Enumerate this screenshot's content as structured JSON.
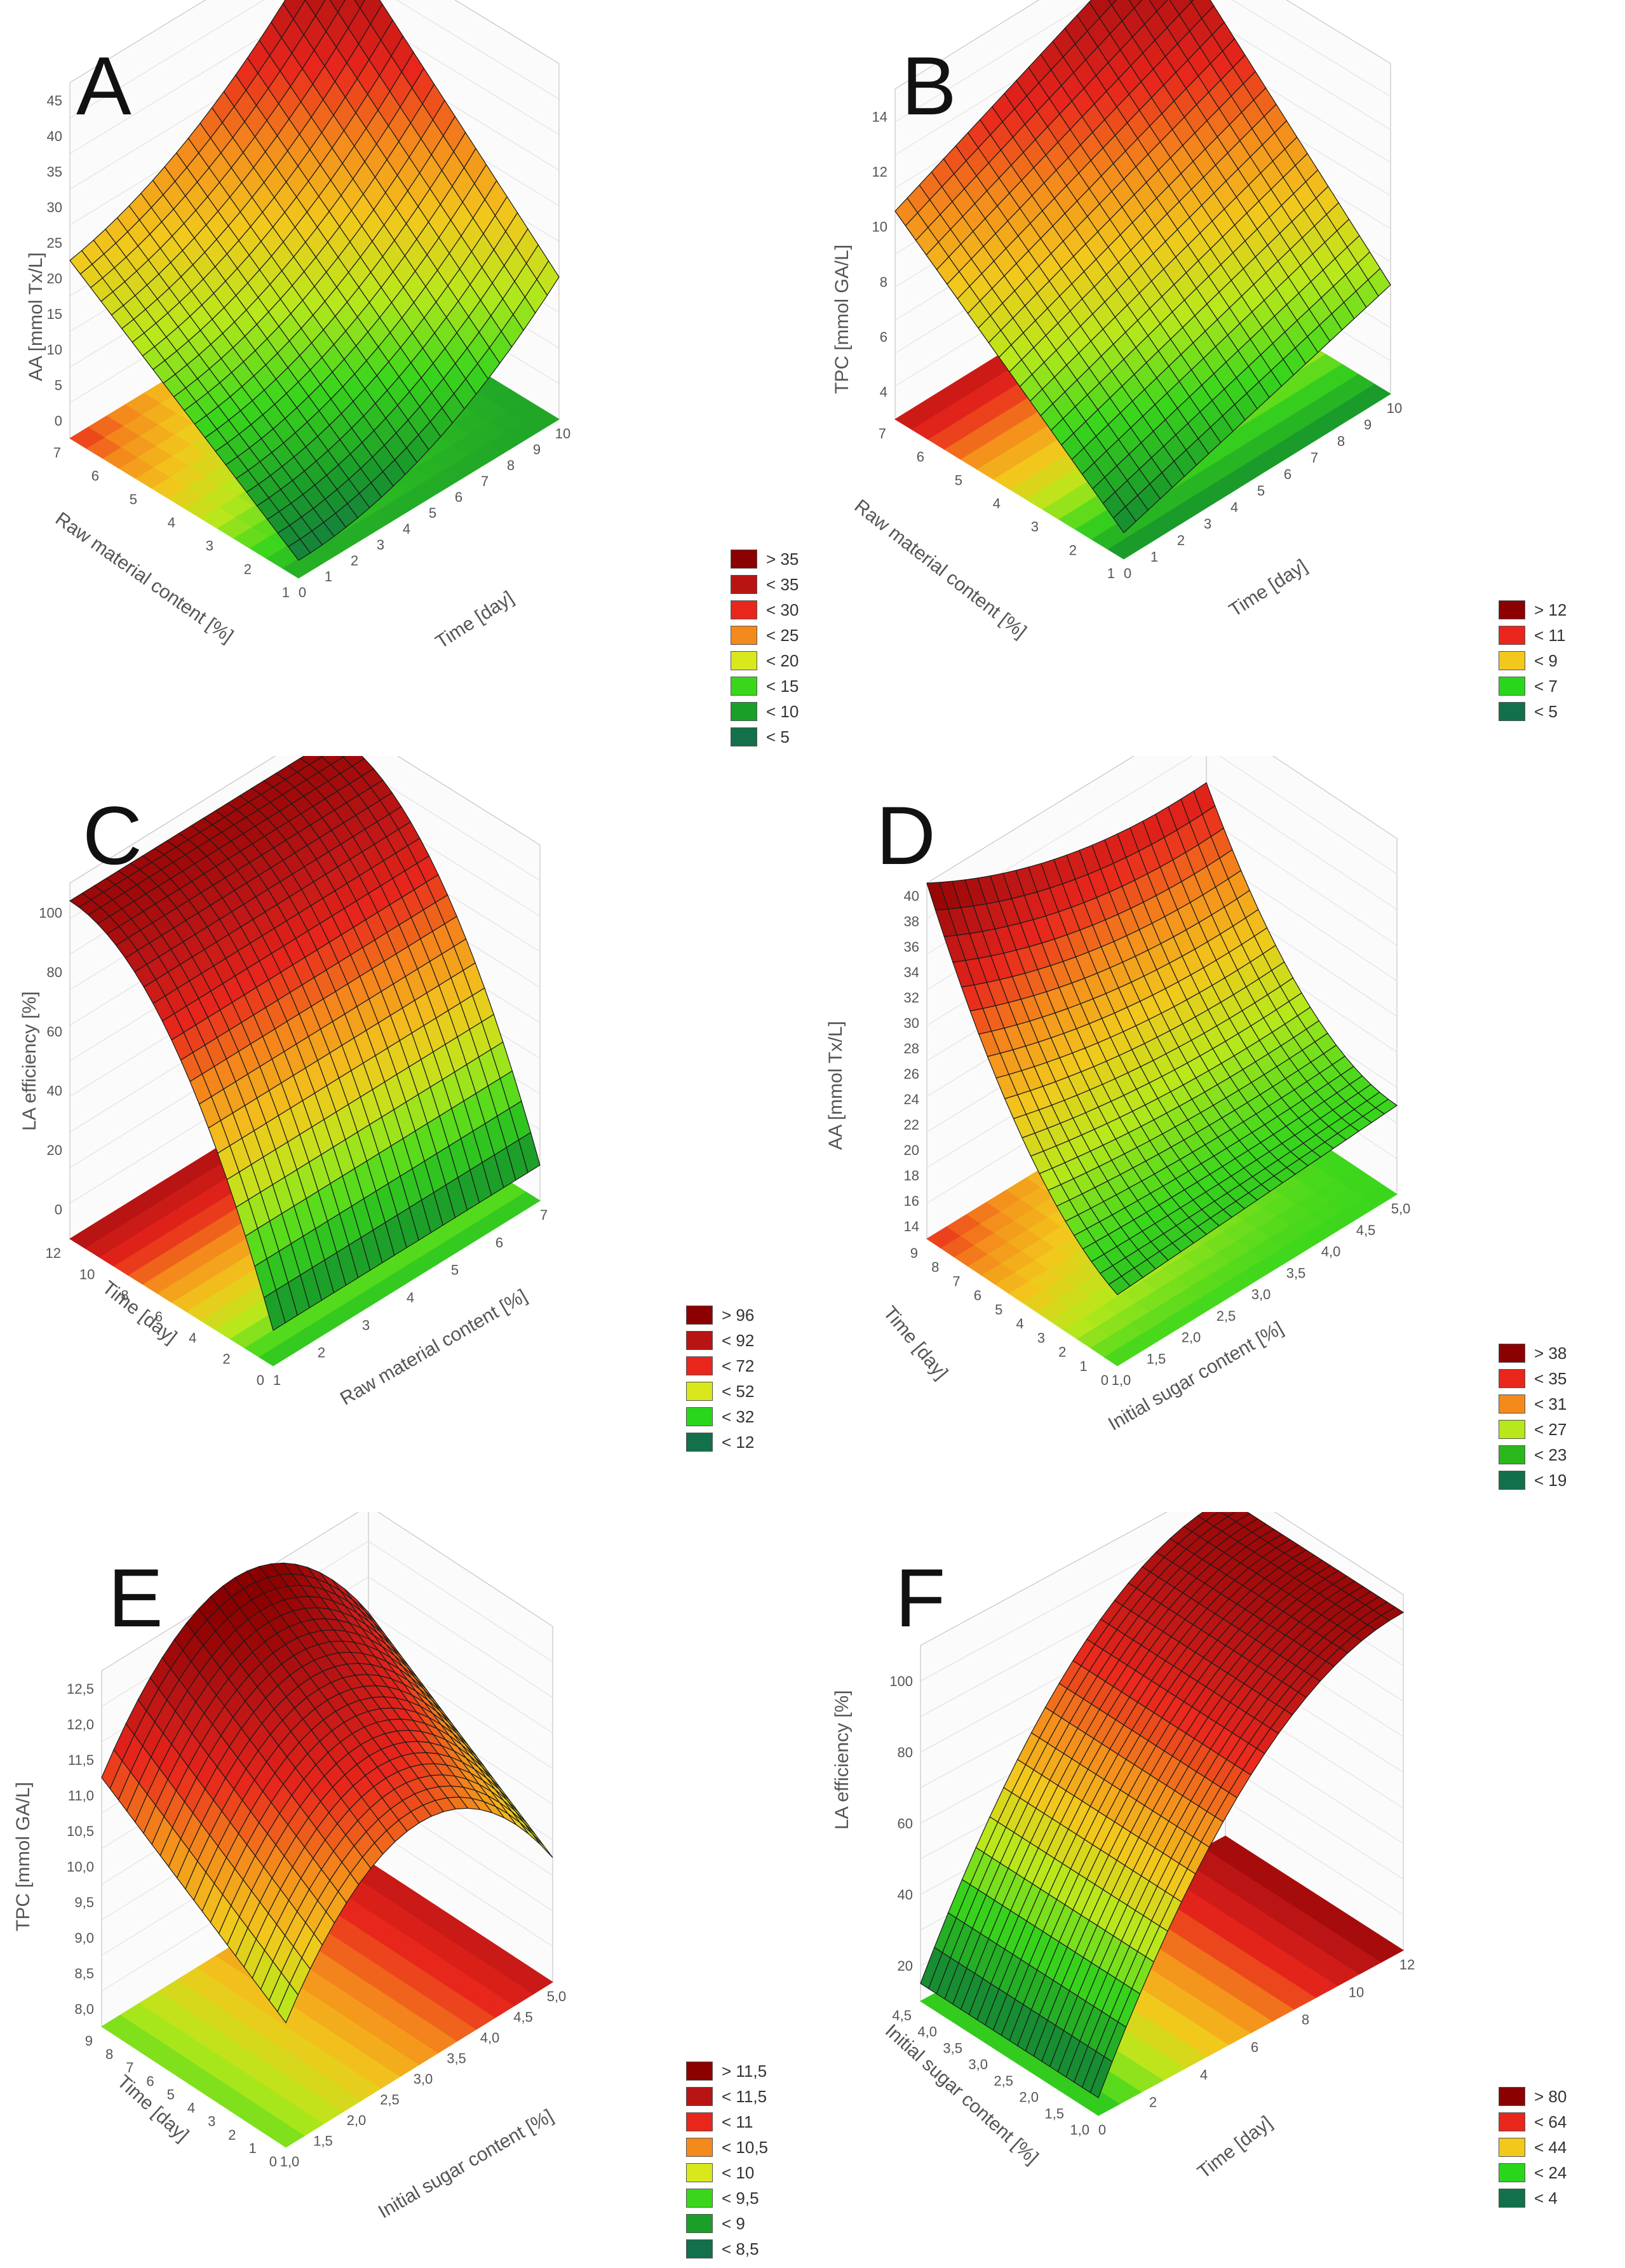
{
  "chart_data": [
    {
      "type": "surface3d",
      "panel_letter": "A",
      "zlabel": "AA [mmol Tx/L]",
      "xlabel": "Time [day]",
      "ylabel": "Raw material content [%]",
      "z_ticks": [
        "0",
        "5",
        "10",
        "15",
        "20",
        "25",
        "30",
        "35",
        "40",
        "45"
      ],
      "x_ticks": [
        "0",
        "1",
        "2",
        "3",
        "4",
        "5",
        "6",
        "7",
        "8",
        "9",
        "10"
      ],
      "y_ticks": [
        "1",
        "2",
        "3",
        "4",
        "5",
        "6",
        "7"
      ],
      "corner_values": {
        "t0_r1": 0,
        "t10_r1": 20,
        "t0_r7": 25,
        "t10_r7": 46
      },
      "legend": [
        {
          "label": "> 35",
          "color": "#8b0000"
        },
        {
          "label": "< 35",
          "color": "#b81414"
        },
        {
          "label": "< 30",
          "color": "#e8261c"
        },
        {
          "label": "< 25",
          "color": "#f48a1c"
        },
        {
          "label": "< 20",
          "color": "#d8e81c"
        },
        {
          "label": "< 15",
          "color": "#3ad61c"
        },
        {
          "label": "< 10",
          "color": "#1aa028"
        },
        {
          "label": "< 5",
          "color": "#12704a"
        }
      ]
    },
    {
      "type": "surface3d",
      "panel_letter": "B",
      "zlabel": "TPC [mmol GA/L]",
      "xlabel": "Time [day]",
      "ylabel": "Raw material content [%]",
      "z_ticks": [
        "4",
        "6",
        "8",
        "10",
        "12",
        "14"
      ],
      "x_ticks": [
        "0",
        "1",
        "2",
        "3",
        "4",
        "5",
        "6",
        "7",
        "8",
        "9",
        "10"
      ],
      "y_ticks": [
        "1",
        "2",
        "3",
        "4",
        "5",
        "6",
        "7"
      ],
      "corner_values": {
        "t0_r1": 3,
        "t10_r1": 6,
        "t0_r7": 11,
        "t10_r7": 14
      },
      "legend": [
        {
          "label": "> 12",
          "color": "#8b0000"
        },
        {
          "label": "< 11",
          "color": "#e8261c"
        },
        {
          "label": "< 9",
          "color": "#f2c81c"
        },
        {
          "label": "< 7",
          "color": "#2ad61c"
        },
        {
          "label": "< 5",
          "color": "#12704a"
        }
      ]
    },
    {
      "type": "surface3d",
      "panel_letter": "C",
      "zlabel": "LA efficiency [%]",
      "xlabel": "Raw material content [%]",
      "ylabel": "Time [day]",
      "z_ticks": [
        "0",
        "20",
        "40",
        "60",
        "80",
        "100"
      ],
      "x_ticks": [
        "1",
        "2",
        "3",
        "4",
        "5",
        "6",
        "7"
      ],
      "y_ticks": [
        "0",
        "2",
        "4",
        "6",
        "8",
        "10",
        "12"
      ],
      "legend": [
        {
          "label": "> 96",
          "color": "#8b0000"
        },
        {
          "label": "< 92",
          "color": "#b81414"
        },
        {
          "label": "< 72",
          "color": "#e8261c"
        },
        {
          "label": "< 52",
          "color": "#d8e81c"
        },
        {
          "label": "< 32",
          "color": "#2ad61c"
        },
        {
          "label": "< 12",
          "color": "#12704a"
        }
      ]
    },
    {
      "type": "surface3d",
      "panel_letter": "D",
      "zlabel": "AA [mmol Tx/L]",
      "xlabel": "Initial sugar content [%]",
      "ylabel": "Time [day]",
      "z_ticks": [
        "14",
        "16",
        "18",
        "20",
        "22",
        "24",
        "26",
        "28",
        "30",
        "32",
        "34",
        "36",
        "38",
        "40"
      ],
      "x_ticks": [
        "1,0",
        "1,5",
        "2,0",
        "2,5",
        "3,0",
        "3,5",
        "4,0",
        "4,5",
        "5,0"
      ],
      "y_ticks": [
        "0",
        "1",
        "2",
        "3",
        "4",
        "5",
        "6",
        "7",
        "8",
        "9"
      ],
      "legend": [
        {
          "label": "> 38",
          "color": "#8b0000"
        },
        {
          "label": "< 35",
          "color": "#e8261c"
        },
        {
          "label": "< 31",
          "color": "#f48a1c"
        },
        {
          "label": "< 27",
          "color": "#b8e81c"
        },
        {
          "label": "< 23",
          "color": "#2ab81c"
        },
        {
          "label": "< 19",
          "color": "#12704a"
        }
      ]
    },
    {
      "type": "surface3d",
      "panel_letter": "E",
      "zlabel": "TPC [mmol GA/L]",
      "xlabel": "Initial sugar content [%]",
      "ylabel": "Time [day]",
      "z_ticks": [
        "8,0",
        "8,5",
        "9,0",
        "9,5",
        "10,0",
        "10,5",
        "11,0",
        "11,5",
        "12,0",
        "12,5"
      ],
      "x_ticks": [
        "1,0",
        "1,5",
        "2,0",
        "2,5",
        "3,0",
        "3,5",
        "4,0",
        "4,5",
        "5,0"
      ],
      "y_ticks": [
        "0",
        "1",
        "2",
        "3",
        "4",
        "5",
        "6",
        "7",
        "8",
        "9"
      ],
      "legend": [
        {
          "label": "> 11,5",
          "color": "#8b0000"
        },
        {
          "label": "< 11,5",
          "color": "#b81414"
        },
        {
          "label": "< 11",
          "color": "#e8261c"
        },
        {
          "label": "< 10,5",
          "color": "#f48a1c"
        },
        {
          "label": "< 10",
          "color": "#d8e81c"
        },
        {
          "label": "< 9,5",
          "color": "#3ad61c"
        },
        {
          "label": "< 9",
          "color": "#1aa028"
        },
        {
          "label": "< 8,5",
          "color": "#12704a"
        }
      ]
    },
    {
      "type": "surface3d",
      "panel_letter": "F",
      "zlabel": "LA efficiency [%]",
      "xlabel": "Time [day]",
      "ylabel": "Initial sugar content [%]",
      "z_ticks": [
        "20",
        "40",
        "60",
        "80",
        "100"
      ],
      "x_ticks": [
        "0",
        "2",
        "4",
        "6",
        "8",
        "10",
        "12"
      ],
      "y_ticks": [
        "1,0",
        "1,5",
        "2,0",
        "2,5",
        "3,0",
        "3,5",
        "4,0",
        "4,5"
      ],
      "legend": [
        {
          "label": "> 80",
          "color": "#8b0000"
        },
        {
          "label": "< 64",
          "color": "#e8261c"
        },
        {
          "label": "< 44",
          "color": "#f2c81c"
        },
        {
          "label": "< 24",
          "color": "#2ad61c"
        },
        {
          "label": "< 4",
          "color": "#12704a"
        }
      ]
    }
  ]
}
